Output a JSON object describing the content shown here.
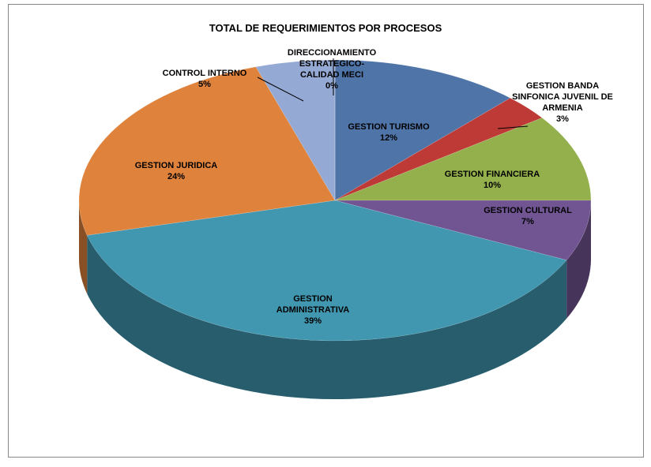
{
  "chart_data": {
    "type": "pie3d",
    "title": "TOTAL DE REQUERIMIENTOS POR PROCESOS",
    "categories": [
      "GESTION TURISMO",
      "GESTION BANDA SINFONICA JUVENIL DE ARMENIA",
      "GESTION FINANCIERA",
      "GESTION CULTURAL",
      "GESTION ADMINISTRATIVA",
      "GESTION JURIDICA",
      "CONTROL INTERNO",
      "DIRECCIONAMIENTO ESTRATEGICO-CALIDAD MECI"
    ],
    "values": [
      12,
      3,
      10,
      7,
      39,
      24,
      5,
      0
    ],
    "value_labels": [
      "12%",
      "3%",
      "10%",
      "7%",
      "39%",
      "24%",
      "5%",
      "0%"
    ],
    "colors": [
      "#4f74a8",
      "#be3a36",
      "#94b04c",
      "#715593",
      "#4197b0",
      "#de823c",
      "#94a9d3",
      "#c4d0e6"
    ]
  }
}
